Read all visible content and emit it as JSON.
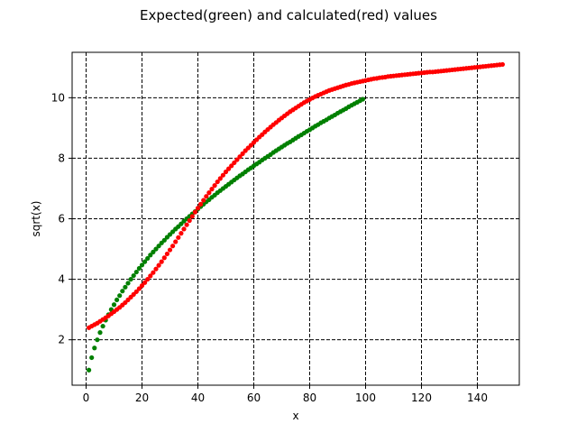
{
  "chart_data": {
    "type": "scatter",
    "title": "Expected(green) and calculated(red) values",
    "xlabel": "x",
    "ylabel": "sqrt(x)",
    "xlim": [
      -5,
      155
    ],
    "ylim": [
      0.5,
      11.5
    ],
    "xticks": [
      0,
      20,
      40,
      60,
      80,
      100,
      120,
      140
    ],
    "yticks": [
      2,
      4,
      6,
      8,
      10
    ],
    "grid": true,
    "grid_style": "dashed",
    "legend": "none",
    "series": [
      {
        "color": "#008000",
        "x": [
          1,
          2,
          3,
          4,
          5,
          6,
          7,
          8,
          9,
          10,
          11,
          12,
          13,
          14,
          15,
          16,
          17,
          18,
          19,
          20,
          21,
          22,
          23,
          24,
          25,
          26,
          27,
          28,
          29,
          30,
          31,
          32,
          33,
          34,
          35,
          36,
          37,
          38,
          39,
          40,
          41,
          42,
          43,
          44,
          45,
          46,
          47,
          48,
          49,
          50,
          51,
          52,
          53,
          54,
          55,
          56,
          57,
          58,
          59,
          60,
          61,
          62,
          63,
          64,
          65,
          66,
          67,
          68,
          69,
          70,
          71,
          72,
          73,
          74,
          75,
          76,
          77,
          78,
          79,
          80,
          81,
          82,
          83,
          84,
          85,
          86,
          87,
          88,
          89,
          90,
          91,
          92,
          93,
          94,
          95,
          96,
          97,
          98,
          99
        ],
        "y": [
          1.0,
          1.41,
          1.73,
          2.0,
          2.24,
          2.45,
          2.65,
          2.83,
          3.0,
          3.16,
          3.32,
          3.46,
          3.61,
          3.74,
          3.87,
          4.0,
          4.12,
          4.24,
          4.36,
          4.47,
          4.58,
          4.69,
          4.8,
          4.9,
          5.0,
          5.1,
          5.2,
          5.29,
          5.39,
          5.48,
          5.57,
          5.66,
          5.74,
          5.83,
          5.92,
          6.0,
          6.08,
          6.16,
          6.24,
          6.32,
          6.4,
          6.48,
          6.56,
          6.63,
          6.71,
          6.78,
          6.86,
          6.93,
          7.0,
          7.07,
          7.14,
          7.21,
          7.28,
          7.35,
          7.42,
          7.48,
          7.55,
          7.62,
          7.68,
          7.75,
          7.81,
          7.87,
          7.94,
          8.0,
          8.06,
          8.12,
          8.19,
          8.25,
          8.31,
          8.37,
          8.43,
          8.49,
          8.54,
          8.6,
          8.66,
          8.72,
          8.77,
          8.83,
          8.89,
          8.94,
          9.0,
          9.06,
          9.11,
          9.17,
          9.22,
          9.27,
          9.33,
          9.38,
          9.43,
          9.49,
          9.54,
          9.59,
          9.64,
          9.7,
          9.75,
          9.8,
          9.85,
          9.9,
          9.95
        ]
      },
      {
        "color": "#ff0000",
        "x": [
          1,
          2,
          3,
          4,
          5,
          6,
          7,
          8,
          9,
          10,
          11,
          12,
          13,
          14,
          15,
          16,
          17,
          18,
          19,
          20,
          21,
          22,
          23,
          24,
          25,
          26,
          27,
          28,
          29,
          30,
          31,
          32,
          33,
          34,
          35,
          36,
          37,
          38,
          39,
          40,
          41,
          42,
          43,
          44,
          45,
          46,
          47,
          48,
          49,
          50,
          51,
          52,
          53,
          54,
          55,
          56,
          57,
          58,
          59,
          60,
          61,
          62,
          63,
          64,
          65,
          66,
          67,
          68,
          69,
          70,
          71,
          72,
          73,
          74,
          75,
          76,
          77,
          78,
          79,
          80,
          81,
          82,
          83,
          84,
          85,
          86,
          87,
          88,
          89,
          90,
          91,
          92,
          93,
          94,
          95,
          96,
          97,
          98,
          99,
          100,
          101,
          102,
          103,
          104,
          105,
          106,
          107,
          108,
          109,
          110,
          111,
          112,
          113,
          114,
          115,
          116,
          117,
          118,
          119,
          120,
          121,
          122,
          123,
          124,
          125,
          126,
          127,
          128,
          129,
          130,
          131,
          132,
          133,
          134,
          135,
          136,
          137,
          138,
          139,
          140,
          141,
          142,
          143,
          144,
          145,
          146,
          147,
          148,
          149
        ],
        "y": [
          2.4,
          2.45,
          2.5,
          2.55,
          2.61,
          2.67,
          2.73,
          2.79,
          2.86,
          2.93,
          3.0,
          3.07,
          3.15,
          3.23,
          3.32,
          3.41,
          3.5,
          3.59,
          3.69,
          3.79,
          3.89,
          4.0,
          4.11,
          4.22,
          4.34,
          4.46,
          4.58,
          4.71,
          4.84,
          4.97,
          5.1,
          5.24,
          5.38,
          5.52,
          5.66,
          5.8,
          5.94,
          6.08,
          6.22,
          6.35,
          6.48,
          6.61,
          6.74,
          6.86,
          6.98,
          7.1,
          7.22,
          7.33,
          7.44,
          7.55,
          7.65,
          7.75,
          7.85,
          7.95,
          8.05,
          8.15,
          8.25,
          8.34,
          8.43,
          8.52,
          8.61,
          8.7,
          8.78,
          8.87,
          8.95,
          9.03,
          9.11,
          9.18,
          9.26,
          9.33,
          9.4,
          9.47,
          9.54,
          9.6,
          9.66,
          9.72,
          9.78,
          9.84,
          9.89,
          9.94,
          9.99,
          10.04,
          10.08,
          10.12,
          10.16,
          10.2,
          10.24,
          10.27,
          10.3,
          10.33,
          10.36,
          10.39,
          10.42,
          10.44,
          10.47,
          10.49,
          10.51,
          10.53,
          10.55,
          10.57,
          10.59,
          10.61,
          10.63,
          10.64,
          10.66,
          10.67,
          10.68,
          10.7,
          10.71,
          10.72,
          10.73,
          10.74,
          10.75,
          10.76,
          10.77,
          10.78,
          10.79,
          10.8,
          10.81,
          10.82,
          10.83,
          10.84,
          10.85,
          10.85,
          10.86,
          10.87,
          10.88,
          10.89,
          10.9,
          10.91,
          10.92,
          10.93,
          10.94,
          10.95,
          10.96,
          10.97,
          10.98,
          10.99,
          11.0,
          11.01,
          11.02,
          11.03,
          11.04,
          11.05,
          11.06,
          11.07,
          11.08,
          11.09,
          11.1
        ]
      }
    ]
  }
}
